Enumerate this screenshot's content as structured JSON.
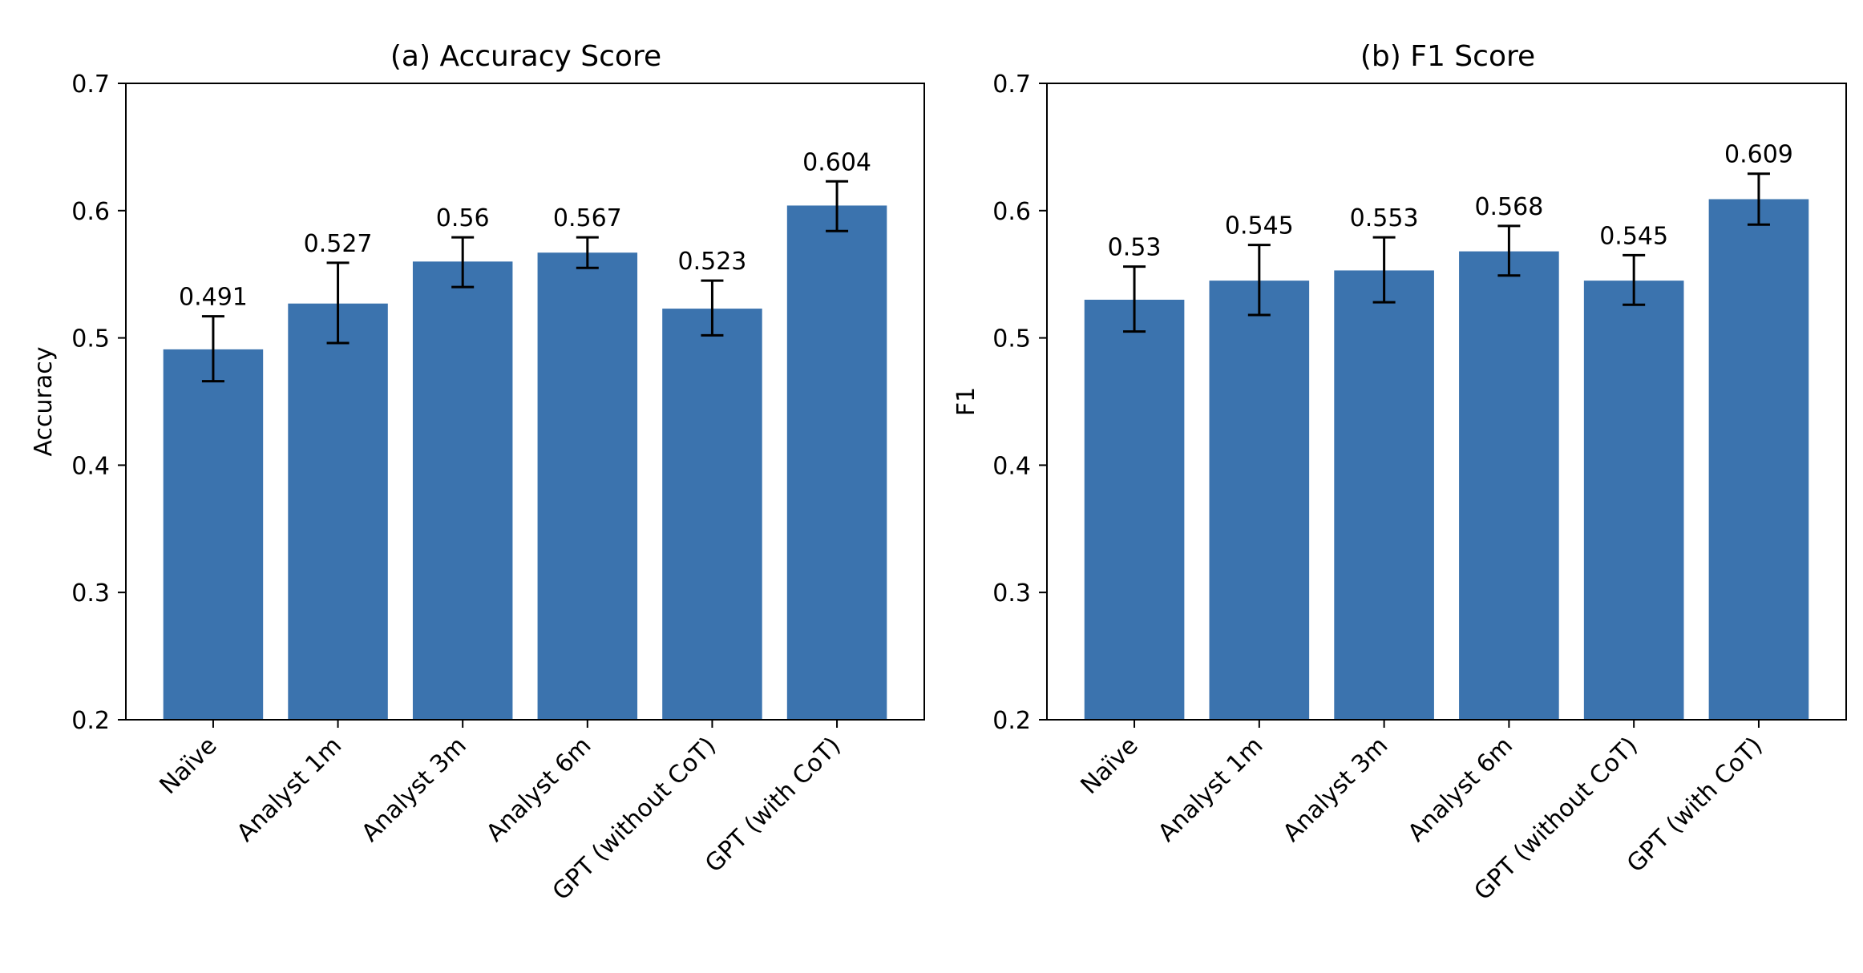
{
  "chart_data": [
    {
      "type": "bar",
      "title": "(a) Accuracy Score",
      "xlabel": "",
      "ylabel": "Accuracy",
      "ylim": [
        0.2,
        0.7
      ],
      "yticks": [
        "0.2",
        "0.3",
        "0.4",
        "0.5",
        "0.6",
        "0.7"
      ],
      "categories": [
        "Naïve",
        "Analyst 1m",
        "Analyst 3m",
        "Analyst 6m",
        "GPT (without CoT)",
        "GPT (with CoT)"
      ],
      "values": [
        0.491,
        0.527,
        0.56,
        0.567,
        0.523,
        0.604
      ],
      "value_labels": [
        "0.491",
        "0.527",
        "0.56",
        "0.567",
        "0.523",
        "0.604"
      ],
      "error_low": [
        0.466,
        0.496,
        0.54,
        0.555,
        0.502,
        0.584
      ],
      "error_high": [
        0.517,
        0.559,
        0.579,
        0.579,
        0.545,
        0.623
      ],
      "grid": false,
      "bar_color": "#3b73ae"
    },
    {
      "type": "bar",
      "title": "(b) F1 Score",
      "xlabel": "",
      "ylabel": "F1",
      "ylim": [
        0.2,
        0.7
      ],
      "yticks": [
        "0.2",
        "0.3",
        "0.4",
        "0.5",
        "0.6",
        "0.7"
      ],
      "categories": [
        "Naïve",
        "Analyst 1m",
        "Analyst 3m",
        "Analyst 6m",
        "GPT (without CoT)",
        "GPT (with CoT)"
      ],
      "values": [
        0.53,
        0.545,
        0.553,
        0.568,
        0.545,
        0.609
      ],
      "value_labels": [
        "0.53",
        "0.545",
        "0.553",
        "0.568",
        "0.545",
        "0.609"
      ],
      "error_low": [
        0.505,
        0.518,
        0.528,
        0.549,
        0.526,
        0.589
      ],
      "error_high": [
        0.556,
        0.573,
        0.579,
        0.588,
        0.565,
        0.629
      ],
      "grid": false,
      "bar_color": "#3b73ae"
    }
  ]
}
